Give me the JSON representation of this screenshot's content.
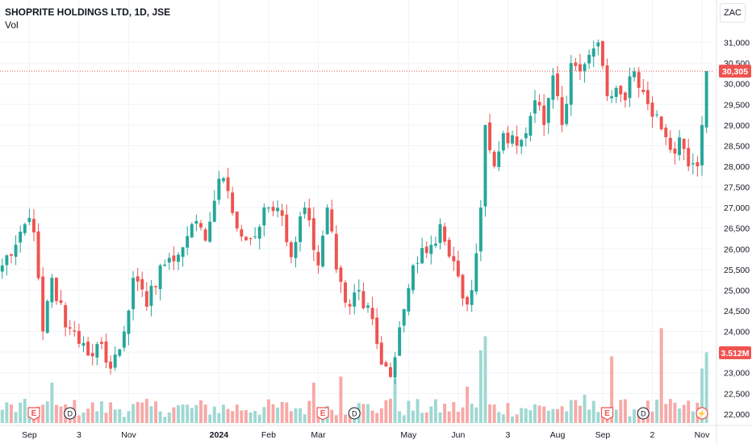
{
  "header": {
    "title": "SHOPRITE HOLDINGS LTD, 1D, JSE",
    "volume_label": "Vol",
    "currency": "ZAC"
  },
  "colors": {
    "up": "#26a69a",
    "down": "#ef5350",
    "up_vol": "#9fd8d2",
    "down_vol": "#f7a9a7",
    "price_tag": "#ef5350",
    "grid": "#f0f3fa",
    "axis_text": "#131722"
  },
  "chart_data": {
    "type": "candlestick",
    "ylim": [
      21900,
      31500
    ],
    "y_ticks": [
      22000,
      22500,
      23000,
      23500,
      24000,
      24500,
      25000,
      25500,
      26000,
      26500,
      27000,
      27500,
      28000,
      28500,
      29000,
      29500,
      30000,
      30500,
      31000
    ],
    "y_tick_labels": [
      "22,000",
      "22,500",
      "23,000",
      "23,500",
      "24,000",
      "24,500",
      "25,000",
      "25,500",
      "26,000",
      "26,500",
      "27,000",
      "27,500",
      "28,000",
      "28,500",
      "29,000",
      "29,500",
      "30,000",
      "30,500",
      "31,000"
    ],
    "x_ticks": [
      {
        "label": "Sep",
        "bar": 6
      },
      {
        "label": "3",
        "bar": 17
      },
      {
        "label": "Nov",
        "bar": 28
      },
      {
        "label": "2024",
        "bar": 48
      },
      {
        "label": "Feb",
        "bar": 59
      },
      {
        "label": "Mar",
        "bar": 70
      },
      {
        "label": "May",
        "bar": 90
      },
      {
        "label": "Jun",
        "bar": 101
      },
      {
        "label": "3",
        "bar": 112
      },
      {
        "label": "Aug",
        "bar": 123
      },
      {
        "label": "Sep",
        "bar": 133
      },
      {
        "label": "2",
        "bar": 144
      },
      {
        "label": "Nov",
        "bar": 155
      }
    ],
    "last_price": 30305,
    "last_price_label": "30,305",
    "volume_readout": "3.512M",
    "price_anchors": [
      [
        0,
        25600
      ],
      [
        3,
        26100
      ],
      [
        5,
        26600
      ],
      [
        7,
        26400
      ],
      [
        9,
        24000
      ],
      [
        11,
        25300
      ],
      [
        14,
        24100
      ],
      [
        17,
        23700
      ],
      [
        20,
        23400
      ],
      [
        22,
        23700
      ],
      [
        24,
        23100
      ],
      [
        27,
        24000
      ],
      [
        29,
        25300
      ],
      [
        32,
        24600
      ],
      [
        35,
        25600
      ],
      [
        38,
        25700
      ],
      [
        42,
        26600
      ],
      [
        45,
        26200
      ],
      [
        48,
        27700
      ],
      [
        50,
        27400
      ],
      [
        53,
        26300
      ],
      [
        56,
        26300
      ],
      [
        59,
        27000
      ],
      [
        62,
        26800
      ],
      [
        64,
        25800
      ],
      [
        67,
        27000
      ],
      [
        70,
        25600
      ],
      [
        72,
        27000
      ],
      [
        74,
        25500
      ],
      [
        76,
        24700
      ],
      [
        79,
        25000
      ],
      [
        82,
        24300
      ],
      [
        84,
        23200
      ],
      [
        86,
        22900
      ],
      [
        88,
        24100
      ],
      [
        91,
        25600
      ],
      [
        94,
        25900
      ],
      [
        97,
        26600
      ],
      [
        100,
        25700
      ],
      [
        102,
        24800
      ],
      [
        104,
        25000
      ],
      [
        106,
        27000
      ],
      [
        107,
        29000
      ],
      [
        109,
        28000
      ],
      [
        111,
        28800
      ],
      [
        114,
        28500
      ],
      [
        116,
        28800
      ],
      [
        118,
        29600
      ],
      [
        120,
        29000
      ],
      [
        122,
        30200
      ],
      [
        124,
        29000
      ],
      [
        126,
        30500
      ],
      [
        128,
        30300
      ],
      [
        130,
        30700
      ],
      [
        132,
        31000
      ],
      [
        134,
        29700
      ],
      [
        136,
        29900
      ],
      [
        138,
        29600
      ],
      [
        140,
        30300
      ],
      [
        142,
        29800
      ],
      [
        144,
        29200
      ],
      [
        146,
        28900
      ],
      [
        148,
        28400
      ],
      [
        150,
        28700
      ],
      [
        152,
        28000
      ],
      [
        154,
        28000
      ],
      [
        155,
        29000
      ],
      [
        156,
        30305
      ]
    ],
    "volume_spikes": [
      {
        "bar": 11,
        "value": 2.0
      },
      {
        "bar": 12,
        "value": 0.9
      },
      {
        "bar": 69,
        "value": 2.0
      },
      {
        "bar": 75,
        "value": 2.3
      },
      {
        "bar": 86,
        "value": 1.2
      },
      {
        "bar": 87,
        "value": 2.2
      },
      {
        "bar": 103,
        "value": 1.8
      },
      {
        "bar": 106,
        "value": 3.6
      },
      {
        "bar": 107,
        "value": 4.3
      },
      {
        "bar": 129,
        "value": 1.4
      },
      {
        "bar": 135,
        "value": 3.3
      },
      {
        "bar": 146,
        "value": 4.7
      },
      {
        "bar": 155,
        "value": 2.7
      },
      {
        "bar": 156,
        "value": 3.5
      }
    ],
    "events": [
      {
        "label": "E",
        "bar": 7,
        "kind": "earnings"
      },
      {
        "label": "D",
        "bar": 15,
        "kind": "dividend"
      },
      {
        "label": "E",
        "bar": 71,
        "kind": "earnings"
      },
      {
        "label": "D",
        "bar": 78,
        "kind": "dividend"
      },
      {
        "label": "E",
        "bar": 134,
        "kind": "earnings"
      },
      {
        "label": "D",
        "bar": 142,
        "kind": "dividend"
      },
      {
        "label": "⚡",
        "bar": 155,
        "kind": "split"
      }
    ]
  }
}
